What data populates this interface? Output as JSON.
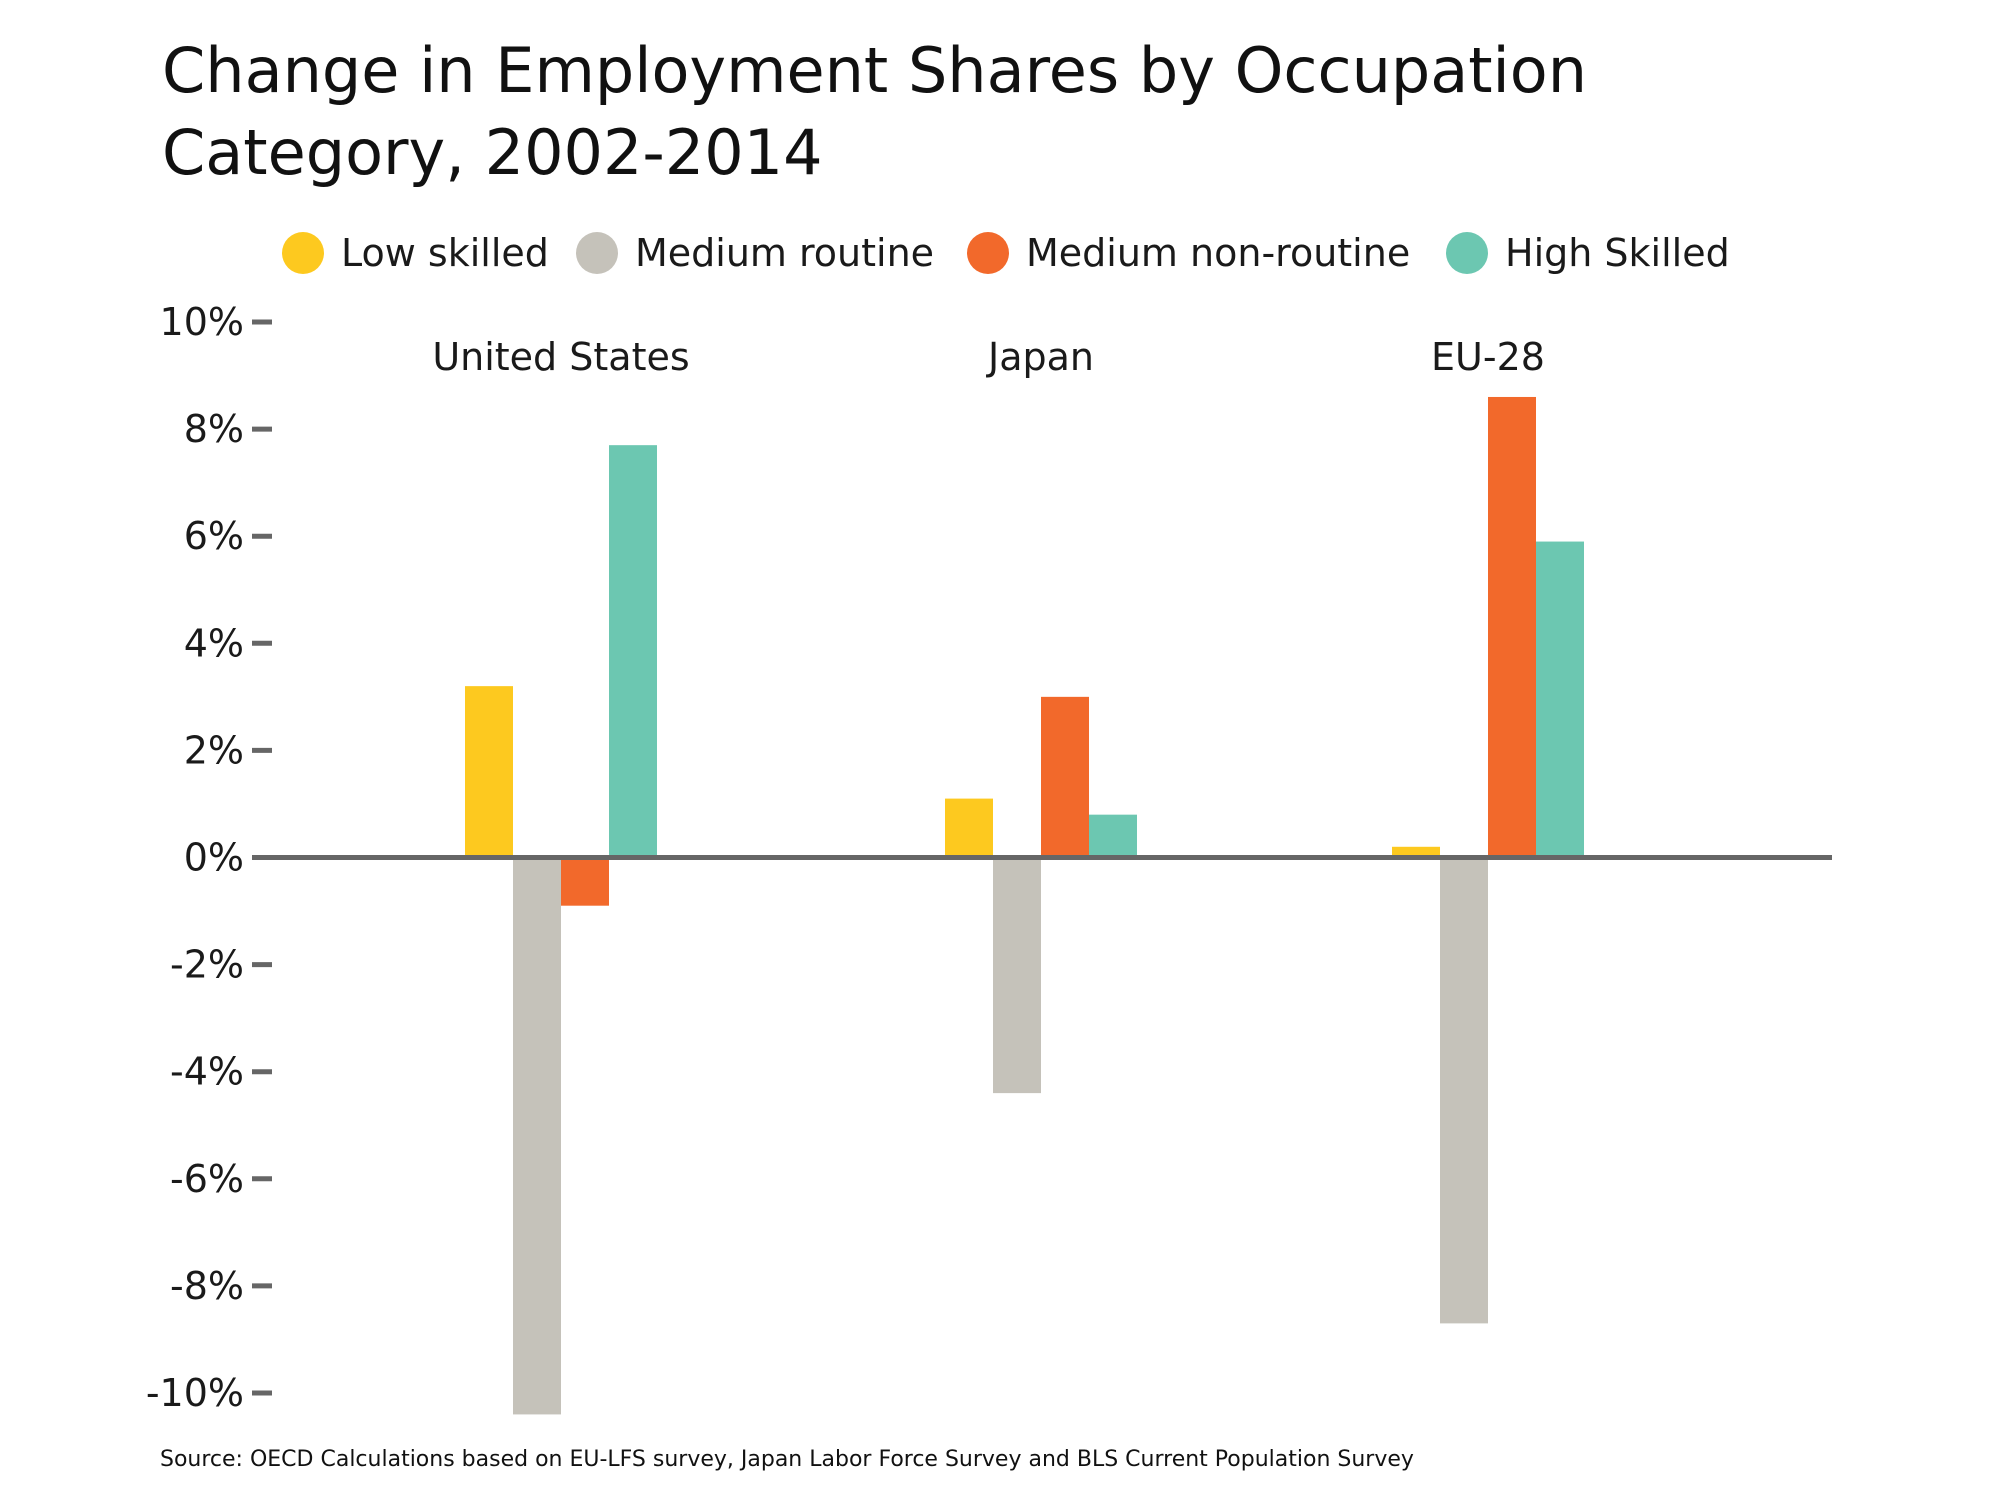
{
  "chart_data": {
    "type": "bar",
    "title": "Change in Employment Shares by Occupation Category, 2002-2014",
    "categories": [
      "United States",
      "Japan",
      "EU-28"
    ],
    "series": [
      {
        "name": "Low skilled",
        "color": "#FDC91F",
        "values": [
          3.2,
          1.1,
          0.2
        ]
      },
      {
        "name": "Medium routine",
        "color": "#C5C2BA",
        "values": [
          -10.4,
          -4.4,
          -8.7
        ]
      },
      {
        "name": "Medium non-routine",
        "color": "#F2692B",
        "values": [
          -0.9,
          3.0,
          8.6
        ]
      },
      {
        "name": "High Skilled",
        "color": "#6CC7B1",
        "values": [
          7.7,
          0.8,
          5.9
        ]
      }
    ],
    "ylim": [
      -10,
      10
    ],
    "yticks": [
      10,
      8,
      6,
      4,
      2,
      0,
      -2,
      -4,
      -6,
      -8,
      -10
    ],
    "ytick_labels": [
      "10%",
      "8%",
      "6%",
      "4%",
      "2%",
      "0%",
      "-2%",
      "-4%",
      "-6%",
      "-8%",
      "-10%"
    ],
    "grid": false,
    "legend_position": "top",
    "source": "Source: OECD Calculations based on EU-LFS survey, Japan Labor Force Survey and BLS Current Population Survey"
  }
}
